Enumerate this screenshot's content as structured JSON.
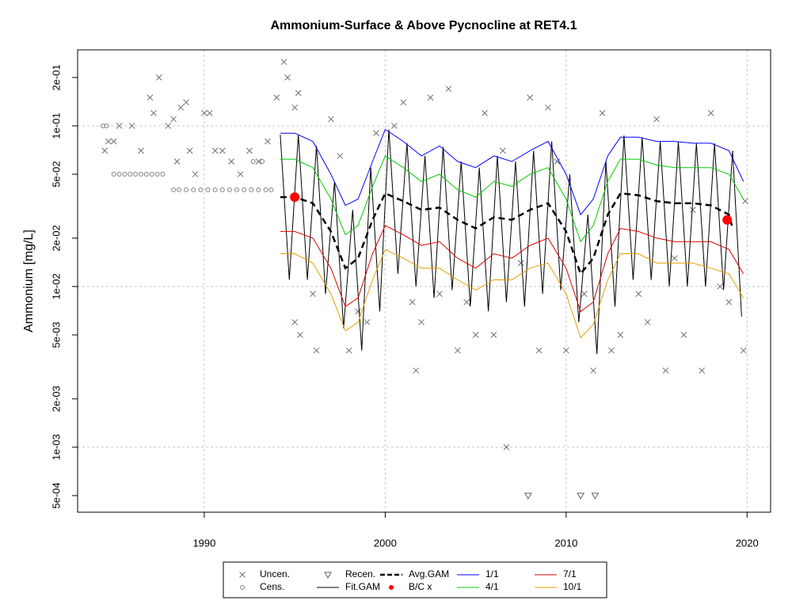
{
  "chart_data": {
    "type": "line",
    "title": "Ammonium-Surface & Above Pycnocline at RET4.1",
    "y_label": "Ammonium [mg/L]",
    "log_y": true,
    "grid": true,
    "xlim": [
      1983,
      2021.3
    ],
    "xticks": [
      1990,
      2000,
      2010,
      2020
    ],
    "ylim": [
      0.000394,
      0.297
    ],
    "yticks": [
      {
        "value": 0.0005,
        "label": "5e-04"
      },
      {
        "value": 0.001,
        "label": "1e-03"
      },
      {
        "value": 0.002,
        "label": "2e-03"
      },
      {
        "value": 0.005,
        "label": "5e-03"
      },
      {
        "value": 0.01,
        "label": "1e-02"
      },
      {
        "value": 0.02,
        "label": "2e-02"
      },
      {
        "value": 0.05,
        "label": "5e-02"
      },
      {
        "value": 0.1,
        "label": "1e-01"
      },
      {
        "value": 0.2,
        "label": "2e-01"
      }
    ],
    "series": [
      {
        "name": "Uncen.",
        "type": "scatter",
        "marker": "x",
        "color": "#707070",
        "x": [
          1984.5,
          1984.7,
          1985,
          1985.3,
          1986,
          1986.5,
          1987,
          1987.2,
          1987.5,
          1988,
          1988.3,
          1988.5,
          1988.7,
          1989,
          1989.2,
          1989.5,
          1990,
          1990.3,
          1990.6,
          1991,
          1991.5,
          1992,
          1992.5,
          1993,
          1993.5,
          1994,
          1994.4,
          1994.6,
          1995,
          1995.2,
          1995.3,
          1995,
          1996,
          1996.2,
          1997,
          1997.5,
          1998,
          1998.5,
          1999,
          1999.5,
          2000.5,
          2001,
          2001.5,
          2001.7,
          2002,
          2002.5,
          2003,
          2003.5,
          2004,
          2004.5,
          2005,
          2005.5,
          2006,
          2006.5,
          2006.7,
          2007.5,
          2008,
          2008.5,
          2009,
          2009.5,
          2010,
          2011,
          2011.5,
          2012,
          2012.5,
          2013,
          2014,
          2014.5,
          2015,
          2015.5,
          2016,
          2016.5,
          2017,
          2017.5,
          2018,
          2018.5,
          2019,
          2019.8,
          2019.9
        ],
        "values": [
          0.07,
          0.08,
          0.08,
          0.1,
          0.1,
          0.07,
          0.15,
          0.12,
          0.2,
          0.1,
          0.11,
          0.06,
          0.13,
          0.14,
          0.07,
          0.05,
          0.12,
          0.12,
          0.07,
          0.07,
          0.06,
          0.05,
          0.07,
          0.06,
          0.08,
          0.15,
          0.25,
          0.2,
          0.13,
          0.16,
          0.005,
          0.006,
          0.009,
          0.004,
          0.11,
          0.065,
          0.004,
          0.007,
          0.006,
          0.09,
          0.1,
          0.14,
          0.008,
          0.003,
          0.006,
          0.15,
          0.009,
          0.17,
          0.004,
          0.008,
          0.005,
          0.12,
          0.005,
          0.07,
          0.001,
          0.014,
          0.15,
          0.004,
          0.13,
          0.06,
          0.004,
          0.009,
          0.003,
          0.12,
          0.004,
          0.005,
          0.009,
          0.006,
          0.11,
          0.003,
          0.015,
          0.005,
          0.03,
          0.003,
          0.12,
          0.01,
          0.008,
          0.004,
          0.034
        ]
      },
      {
        "name": "Cens.",
        "type": "scatter",
        "marker": "o",
        "color": "#808080",
        "x": [
          1984.4,
          1984.6,
          1985,
          1985.3,
          1985.6,
          1985.9,
          1986.2,
          1986.5,
          1986.8,
          1987.1,
          1987.4,
          1987.7,
          1988.3,
          1988.6,
          1989,
          1989.4,
          1989.8,
          1990.2,
          1990.6,
          1991,
          1991.4,
          1991.8,
          1992.2,
          1992.6,
          1993,
          1993.4,
          1993.7,
          1992.7,
          1993.2
        ],
        "values": [
          0.1,
          0.1,
          0.05,
          0.05,
          0.05,
          0.05,
          0.05,
          0.05,
          0.05,
          0.05,
          0.05,
          0.05,
          0.04,
          0.04,
          0.04,
          0.04,
          0.04,
          0.04,
          0.04,
          0.04,
          0.04,
          0.04,
          0.04,
          0.04,
          0.04,
          0.04,
          0.04,
          0.06,
          0.06
        ]
      },
      {
        "name": "Recen.",
        "type": "scatter",
        "marker": "v",
        "color": "#606060",
        "x": [
          2007.9,
          2010.8,
          2011.6
        ],
        "values": [
          0.0005,
          0.0005,
          0.0005
        ]
      },
      {
        "name": "Fit.GAM",
        "type": "line",
        "linestyle": "solid",
        "width": 1,
        "color": "#000000",
        "x": [
          1994.2,
          1994.7,
          1995.2,
          1995.7,
          1996.2,
          1996.7,
          1997.2,
          1997.7,
          1998.2,
          1998.7,
          1999.2,
          1999.7,
          2000.2,
          2000.7,
          2001.2,
          2001.7,
          2002.2,
          2002.7,
          2003.2,
          2003.7,
          2004.2,
          2004.7,
          2005.2,
          2005.7,
          2006.2,
          2006.7,
          2007.2,
          2007.7,
          2008.2,
          2008.7,
          2009.2,
          2009.7,
          2010.2,
          2010.7,
          2011.2,
          2011.7,
          2012.2,
          2012.7,
          2013.2,
          2013.7,
          2014.2,
          2014.7,
          2015.2,
          2015.7,
          2016.2,
          2016.7,
          2017.2,
          2017.7,
          2018.2,
          2018.7,
          2019.2,
          2019.7
        ],
        "values": [
          0.088,
          0.011,
          0.088,
          0.011,
          0.075,
          0.009,
          0.045,
          0.0055,
          0.03,
          0.004,
          0.055,
          0.007,
          0.095,
          0.012,
          0.078,
          0.01,
          0.065,
          0.0085,
          0.074,
          0.0095,
          0.06,
          0.0075,
          0.055,
          0.007,
          0.065,
          0.008,
          0.06,
          0.0075,
          0.07,
          0.009,
          0.08,
          0.0095,
          0.05,
          0.006,
          0.028,
          0.0038,
          0.06,
          0.0075,
          0.087,
          0.011,
          0.085,
          0.011,
          0.08,
          0.01,
          0.08,
          0.01,
          0.078,
          0.01,
          0.078,
          0.0095,
          0.07,
          0.0065
        ]
      },
      {
        "name": "Avg.GAM",
        "type": "line",
        "linestyle": "dashed",
        "width": 2.5,
        "color": "#000000",
        "x": [
          1994.2,
          1995,
          1996,
          1997,
          1997.8,
          1998.5,
          1999.3,
          2000,
          2001,
          2002,
          2003,
          2004,
          2005,
          2006,
          2007,
          2008,
          2009,
          2010,
          2010.8,
          2011.5,
          2012.3,
          2013,
          2014,
          2015,
          2016,
          2017,
          2018,
          2019,
          2019.2
        ],
        "values": [
          0.036,
          0.036,
          0.033,
          0.022,
          0.013,
          0.015,
          0.026,
          0.038,
          0.034,
          0.03,
          0.031,
          0.026,
          0.023,
          0.027,
          0.026,
          0.03,
          0.033,
          0.022,
          0.012,
          0.015,
          0.028,
          0.038,
          0.037,
          0.034,
          0.033,
          0.033,
          0.032,
          0.028,
          0.023
        ]
      },
      {
        "name": "B/C x",
        "type": "scatter",
        "marker": "dot",
        "color": "#ff0000",
        "x": [
          1995.0,
          2018.9
        ],
        "values": [
          0.036,
          0.026
        ]
      },
      {
        "name": "1/1",
        "type": "line",
        "linestyle": "solid",
        "width": 1,
        "color": "#0000ff",
        "x": [
          1994.2,
          1995,
          1996,
          1997,
          1997.8,
          1998.5,
          1999.3,
          2000,
          2001,
          2002,
          2003,
          2004,
          2005,
          2006,
          2007,
          2008,
          2009,
          2010,
          2010.8,
          2011.5,
          2012.3,
          2013,
          2014,
          2015,
          2016,
          2017,
          2018,
          2019,
          2019.8
        ],
        "values": [
          0.09,
          0.09,
          0.08,
          0.05,
          0.032,
          0.035,
          0.06,
          0.095,
          0.08,
          0.065,
          0.075,
          0.06,
          0.055,
          0.065,
          0.06,
          0.07,
          0.08,
          0.05,
          0.028,
          0.035,
          0.065,
          0.085,
          0.085,
          0.08,
          0.08,
          0.078,
          0.078,
          0.07,
          0.045
        ]
      },
      {
        "name": "4/1",
        "type": "line",
        "linestyle": "solid",
        "width": 1,
        "color": "#00cc00",
        "x": [
          1994.2,
          1995,
          1996,
          1997,
          1997.8,
          1998.5,
          1999.3,
          2000,
          2001,
          2002,
          2003,
          2004,
          2005,
          2006,
          2007,
          2008,
          2009,
          2010,
          2010.8,
          2011.5,
          2012.3,
          2013,
          2014,
          2015,
          2016,
          2017,
          2018,
          2019,
          2019.8
        ],
        "values": [
          0.062,
          0.062,
          0.055,
          0.035,
          0.021,
          0.024,
          0.042,
          0.065,
          0.055,
          0.045,
          0.05,
          0.04,
          0.036,
          0.045,
          0.042,
          0.05,
          0.055,
          0.035,
          0.019,
          0.024,
          0.045,
          0.062,
          0.062,
          0.057,
          0.055,
          0.055,
          0.055,
          0.05,
          0.035
        ]
      },
      {
        "name": "7/1",
        "type": "line",
        "linestyle": "solid",
        "width": 1,
        "color": "#dd0000",
        "x": [
          1994.2,
          1995,
          1996,
          1997,
          1997.8,
          1998.5,
          1999.3,
          2000,
          2001,
          2002,
          2003,
          2004,
          2005,
          2006,
          2007,
          2008,
          2009,
          2010,
          2010.8,
          2011.5,
          2012.3,
          2013,
          2014,
          2015,
          2016,
          2017,
          2018,
          2019,
          2019.8
        ],
        "values": [
          0.022,
          0.022,
          0.02,
          0.013,
          0.0075,
          0.0085,
          0.016,
          0.024,
          0.021,
          0.018,
          0.019,
          0.015,
          0.013,
          0.016,
          0.015,
          0.018,
          0.02,
          0.013,
          0.007,
          0.008,
          0.016,
          0.023,
          0.022,
          0.02,
          0.019,
          0.019,
          0.019,
          0.017,
          0.012
        ]
      },
      {
        "name": "10/1",
        "type": "line",
        "linestyle": "solid",
        "width": 1,
        "color": "#e69f00",
        "x": [
          1994.2,
          1995,
          1996,
          1997,
          1997.8,
          1998.5,
          1999.3,
          2000,
          2001,
          2002,
          2003,
          2004,
          2005,
          2006,
          2007,
          2008,
          2009,
          2010,
          2010.8,
          2011.5,
          2012.3,
          2013,
          2014,
          2015,
          2016,
          2017,
          2018,
          2019,
          2019.8
        ],
        "values": [
          0.016,
          0.016,
          0.014,
          0.009,
          0.0053,
          0.006,
          0.011,
          0.017,
          0.015,
          0.013,
          0.013,
          0.011,
          0.0095,
          0.011,
          0.011,
          0.013,
          0.014,
          0.009,
          0.0048,
          0.0058,
          0.011,
          0.016,
          0.016,
          0.014,
          0.014,
          0.014,
          0.013,
          0.012,
          0.0085
        ]
      }
    ]
  }
}
